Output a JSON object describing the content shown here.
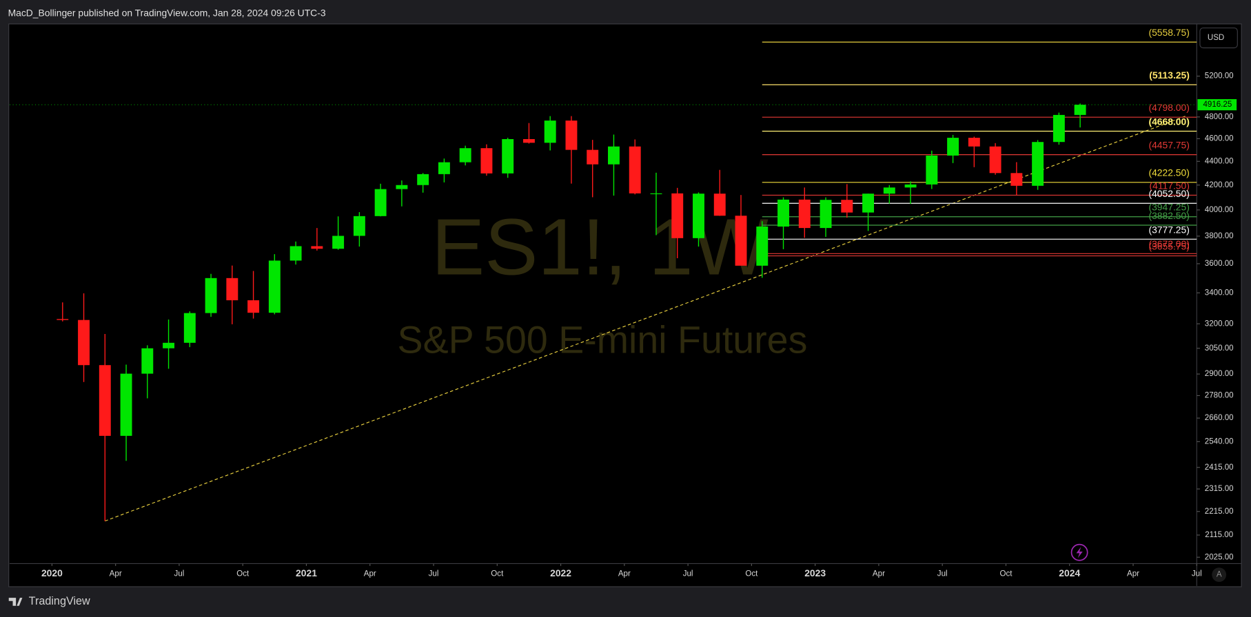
{
  "header": {
    "text": "MacD_Bollinger published on TradingView.com, Jan 28, 2024 09:26 UTC-3"
  },
  "chart_data": {
    "type": "candlestick",
    "watermark": {
      "symbol": "ES1!, 1W",
      "description": "S&P 500 E-mini Futures"
    },
    "currency": "USD",
    "auto_button": "A",
    "log_scale": true,
    "up_color": "#00e600",
    "down_color": "#ff1a1a",
    "x": [
      "2020-01",
      "2020-02",
      "2020-03",
      "2020-04",
      "2020-05",
      "2020-06",
      "2020-07",
      "2020-08",
      "2020-09",
      "2020-10",
      "2020-11",
      "2020-12",
      "2021-01",
      "2021-02",
      "2021-03",
      "2021-04",
      "2021-05",
      "2021-06",
      "2021-07",
      "2021-08",
      "2021-09",
      "2021-10",
      "2021-11",
      "2021-12",
      "2022-01",
      "2022-02",
      "2022-03",
      "2022-04",
      "2022-05",
      "2022-06",
      "2022-07",
      "2022-08",
      "2022-09",
      "2022-10",
      "2022-11",
      "2022-12",
      "2023-01",
      "2023-02",
      "2023-03",
      "2023-04",
      "2023-05",
      "2023-06",
      "2023-07",
      "2023-08",
      "2023-09",
      "2023-10",
      "2023-11",
      "2023-12",
      "2024-01"
    ],
    "open": [
      3230,
      3224,
      2951,
      2569,
      2902,
      3050,
      3083,
      3268,
      3500,
      3351,
      3270,
      3622,
      3726,
      3707,
      3802,
      3952,
      4167,
      4200,
      4291,
      4392,
      4515,
      4297,
      4596,
      4563,
      4766,
      4500,
      4374,
      4530,
      4132,
      4132,
      3785,
      4130,
      3955,
      3586,
      3872,
      4082,
      3861,
      4080,
      3980,
      4130,
      4180,
      4205,
      4450,
      4608,
      4530,
      4300,
      4194,
      4570,
      4819
    ],
    "high": [
      3337,
      3397,
      3137,
      2954,
      3068,
      3227,
      3279,
      3529,
      3587,
      3549,
      3668,
      3760,
      3861,
      3950,
      3983,
      4211,
      4238,
      4300,
      4424,
      4537,
      4549,
      4608,
      4743,
      4808,
      4808,
      4589,
      4637,
      4593,
      4303,
      4177,
      4140,
      4327,
      4119,
      3913,
      4100,
      4180,
      4100,
      4208,
      4130,
      4200,
      4231,
      4493,
      4634,
      4618,
      4560,
      4393,
      4587,
      4841,
      4928
    ],
    "low": [
      3215,
      2855,
      2174,
      2446,
      2765,
      2930,
      3057,
      3244,
      3197,
      3233,
      3260,
      3594,
      3694,
      3700,
      3723,
      3950,
      4028,
      4138,
      4222,
      4365,
      4278,
      4260,
      4556,
      4495,
      4212,
      4101,
      4114,
      4124,
      3807,
      3639,
      3723,
      3954,
      3588,
      3502,
      3704,
      3788,
      3794,
      3940,
      3839,
      4050,
      4048,
      4168,
      4385,
      4350,
      4286,
      4120,
      4161,
      4546,
      4702
    ],
    "close": [
      3224,
      2951,
      2569,
      2902,
      3050,
      3083,
      3268,
      3500,
      3351,
      3270,
      3622,
      3726,
      3707,
      3802,
      3952,
      4167,
      4200,
      4291,
      4392,
      4515,
      4297,
      4596,
      4563,
      4766,
      4500,
      4374,
      4530,
      4132,
      4132,
      3785,
      4130,
      3955,
      3586,
      3872,
      4082,
      3861,
      4080,
      3980,
      4130,
      4180,
      4205,
      4450,
      4608,
      4530,
      4300,
      4194,
      4570,
      4819,
      4916.25
    ],
    "xlim": [
      "2019-11",
      "2024-07"
    ],
    "xticks": [
      {
        "value": "2020-01",
        "label": "2020"
      },
      {
        "value": "2020-04",
        "label": "Apr"
      },
      {
        "value": "2020-07",
        "label": "Jul"
      },
      {
        "value": "2020-10",
        "label": "Oct"
      },
      {
        "value": "2021-01",
        "label": "2021"
      },
      {
        "value": "2021-04",
        "label": "Apr"
      },
      {
        "value": "2021-07",
        "label": "Jul"
      },
      {
        "value": "2021-10",
        "label": "Oct"
      },
      {
        "value": "2022-01",
        "label": "2022"
      },
      {
        "value": "2022-04",
        "label": "Apr"
      },
      {
        "value": "2022-07",
        "label": "Jul"
      },
      {
        "value": "2022-10",
        "label": "Oct"
      },
      {
        "value": "2023-01",
        "label": "2023"
      },
      {
        "value": "2023-04",
        "label": "Apr"
      },
      {
        "value": "2023-07",
        "label": "Jul"
      },
      {
        "value": "2023-10",
        "label": "Oct"
      },
      {
        "value": "2024-01",
        "label": "2024"
      },
      {
        "value": "2024-04",
        "label": "Apr"
      },
      {
        "value": "2024-07",
        "label": "Jul"
      }
    ],
    "ylim": [
      2000,
      5760
    ],
    "yticks": [
      {
        "value": 2025,
        "label": "2025.00"
      },
      {
        "value": 2115,
        "label": "2115.00"
      },
      {
        "value": 2215,
        "label": "2215.00"
      },
      {
        "value": 2315,
        "label": "2315.00"
      },
      {
        "value": 2415,
        "label": "2415.00"
      },
      {
        "value": 2540,
        "label": "2540.00"
      },
      {
        "value": 2660,
        "label": "2660.00"
      },
      {
        "value": 2780,
        "label": "2780.00"
      },
      {
        "value": 2900,
        "label": "2900.00"
      },
      {
        "value": 3050,
        "label": "3050.00"
      },
      {
        "value": 3200,
        "label": "3200.00"
      },
      {
        "value": 3400,
        "label": "3400.00"
      },
      {
        "value": 3600,
        "label": "3600.00"
      },
      {
        "value": 3800,
        "label": "3800.00"
      },
      {
        "value": 4000,
        "label": "4000.00"
      },
      {
        "value": 4200,
        "label": "4200.00"
      },
      {
        "value": 4400,
        "label": "4400.00"
      },
      {
        "value": 4600,
        "label": "4600.00"
      },
      {
        "value": 4800,
        "label": "4800.00"
      },
      {
        "value": 5200,
        "label": "5200.00"
      }
    ],
    "levels": [
      {
        "value": 5558.75,
        "label": "(5558.75)",
        "color": "#e8cf3f",
        "bold": false
      },
      {
        "value": 5113.25,
        "label": "(5113.25)",
        "color": "#ffe36b",
        "bold": true
      },
      {
        "value": 4798.0,
        "label": "(4798.00)",
        "color": "#e53935",
        "bold": false
      },
      {
        "value": 4668.0,
        "label": "(4668.00)",
        "color": "#fff176",
        "bold": true
      },
      {
        "value": 4457.75,
        "label": "(4457.75)",
        "color": "#e53935",
        "bold": false
      },
      {
        "value": 4222.5,
        "label": "(4222.50)",
        "color": "#f2de3a",
        "bold": false
      },
      {
        "value": 4117.5,
        "label": "(4117.50)",
        "color": "#e53935",
        "bold": false
      },
      {
        "value": 4052.5,
        "label": "(4052.50)",
        "color": "#ffffff",
        "bold": false
      },
      {
        "value": 3947.25,
        "label": "(3947.25)",
        "color": "#43a047",
        "bold": false
      },
      {
        "value": 3882.5,
        "label": "(3882.50)",
        "color": "#43a047",
        "bold": false
      },
      {
        "value": 3777.25,
        "label": "(3777.25)",
        "color": "#ffffff",
        "bold": false
      },
      {
        "value": 3672.0,
        "label": "(3672.00)",
        "color": "#e53935",
        "bold": false
      },
      {
        "value": 3655.75,
        "label": "(3655.75)",
        "color": "#e53935",
        "bold": false
      }
    ],
    "levels_start": "2022-10",
    "trendline": {
      "x": [
        "2020-03",
        "2024-06"
      ],
      "y": [
        2174,
        4810
      ],
      "color": "#e8cf3f"
    },
    "last_price": {
      "value": 4916.25,
      "color": "#00e600"
    }
  },
  "footer": {
    "brand": "TradingView"
  }
}
